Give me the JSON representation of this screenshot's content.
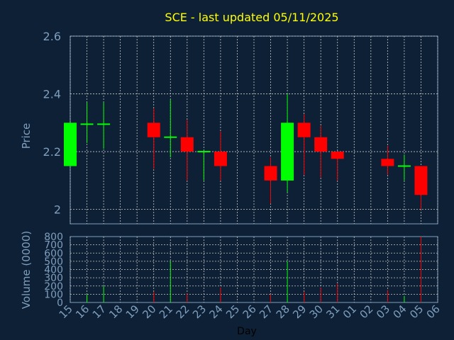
{
  "chart_data": {
    "type": "candlestick",
    "title": "SCE - last updated 05/11/2025",
    "xlabel": "Day",
    "ylabel": "Price",
    "volume_label": "Volume (0000)",
    "ylim": [
      1.95,
      2.6
    ],
    "yticks": [
      2,
      2.2,
      2.4,
      2.6
    ],
    "ytick_labels": [
      "2",
      "2.2",
      "2.4",
      "2.6"
    ],
    "volume_ylim": [
      0,
      800
    ],
    "volume_ticks": [
      0,
      100,
      200,
      300,
      400,
      500,
      600,
      700,
      800
    ],
    "x_labels": [
      "15",
      "16",
      "17",
      "18",
      "19",
      "20",
      "21",
      "22",
      "23",
      "24",
      "25",
      "26",
      "27",
      "28",
      "29",
      "30",
      "31",
      "01",
      "02",
      "03",
      "04",
      "05",
      "06"
    ],
    "grid": true,
    "colors": {
      "background": "#0d2035",
      "title": "#ffff00",
      "axis_text": "#7f9fbf",
      "up": "#00ff00",
      "down": "#ff0000",
      "grid": "#c8c8c8"
    },
    "candles": [
      {
        "day": "15",
        "open": 2.15,
        "high": 2.3,
        "low": 2.15,
        "close": 2.3,
        "volume": 0
      },
      {
        "day": "16",
        "open": 2.295,
        "high": 2.37,
        "low": 2.23,
        "close": 2.295,
        "volume": 100
      },
      {
        "day": "17",
        "open": 2.295,
        "high": 2.37,
        "low": 2.21,
        "close": 2.295,
        "volume": 200
      },
      {
        "day": "20",
        "open": 2.3,
        "high": 2.35,
        "low": 2.14,
        "close": 2.25,
        "volume": 130
      },
      {
        "day": "21",
        "open": 2.25,
        "high": 2.38,
        "low": 2.18,
        "close": 2.25,
        "volume": 500
      },
      {
        "day": "22",
        "open": 2.25,
        "high": 2.31,
        "low": 2.1,
        "close": 2.2,
        "volume": 110
      },
      {
        "day": "23",
        "open": 2.2,
        "high": 2.2,
        "low": 2.1,
        "close": 2.2,
        "volume": 0
      },
      {
        "day": "24",
        "open": 2.2,
        "high": 2.27,
        "low": 2.1,
        "close": 2.15,
        "volume": 180
      },
      {
        "day": "27",
        "open": 2.15,
        "high": 2.18,
        "low": 2.02,
        "close": 2.1,
        "volume": 100
      },
      {
        "day": "28",
        "open": 2.1,
        "high": 2.4,
        "low": 2.06,
        "close": 2.3,
        "volume": 500
      },
      {
        "day": "29",
        "open": 2.3,
        "high": 2.33,
        "low": 2.12,
        "close": 2.25,
        "volume": 130
      },
      {
        "day": "30",
        "open": 2.25,
        "high": 2.29,
        "low": 2.11,
        "close": 2.2,
        "volume": 180
      },
      {
        "day": "31",
        "open": 2.2,
        "high": 2.2,
        "low": 2.1,
        "close": 2.175,
        "volume": 230
      },
      {
        "day": "03",
        "open": 2.175,
        "high": 2.22,
        "low": 2.12,
        "close": 2.15,
        "volume": 150
      },
      {
        "day": "04",
        "open": 2.15,
        "high": 2.19,
        "low": 2.1,
        "close": 2.15,
        "volume": 80
      },
      {
        "day": "05",
        "open": 2.15,
        "high": 2.15,
        "low": 2.0,
        "close": 2.05,
        "volume": 800
      }
    ]
  }
}
